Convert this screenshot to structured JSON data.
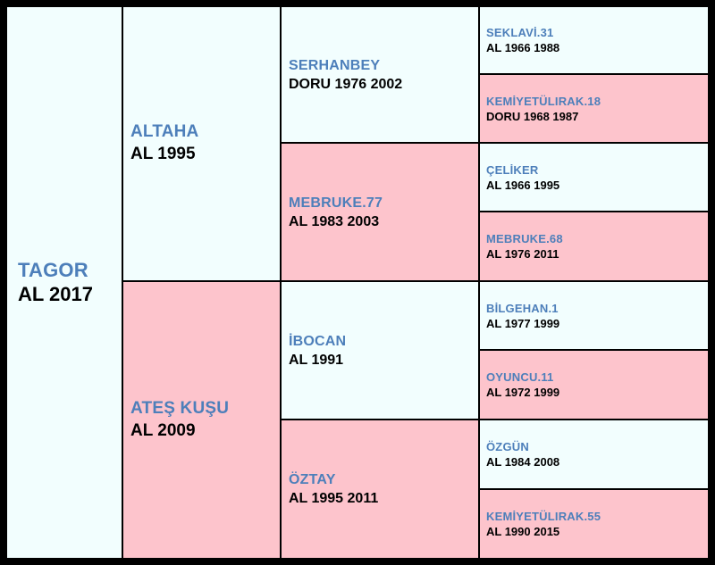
{
  "pedigree": {
    "subject": {
      "name": "TAGOR",
      "info": "AL 2017"
    },
    "sire": {
      "name": "ALTAHA",
      "info": "AL 1995"
    },
    "dam": {
      "name": "ATEŞ KUŞU",
      "info": "AL 2009"
    },
    "sire_sire": {
      "name": "SERHANBEY",
      "info": "DORU 1976 2002"
    },
    "sire_dam": {
      "name": "MEBRUKE.77",
      "info": "AL 1983 2003"
    },
    "dam_sire": {
      "name": "İBOCAN",
      "info": "AL 1991"
    },
    "dam_dam": {
      "name": "ÖZTAY",
      "info": "AL 1995 2011"
    },
    "ggp": [
      {
        "name": "SEKLAVİ.31",
        "info": "AL 1966 1988"
      },
      {
        "name": "KEMİYETÜLIRAK.18",
        "info": "DORU 1968 1987"
      },
      {
        "name": "ÇELİKER",
        "info": "AL 1966 1995"
      },
      {
        "name": "MEBRUKE.68",
        "info": "AL 1976 2011"
      },
      {
        "name": "BİLGEHAN.1",
        "info": "AL 1977 1999"
      },
      {
        "name": "OYUNCU.11",
        "info": "AL 1972 1999"
      },
      {
        "name": "ÖZGÜN",
        "info": "AL 1984 2008"
      },
      {
        "name": "KEMİYETÜLIRAK.55",
        "info": "AL 1990 2015"
      }
    ]
  },
  "colors": {
    "male": "#f2fefe",
    "female": "#fdc4cc",
    "name_text": "#4d7fba",
    "info_text": "#000000",
    "border": "#000000"
  }
}
